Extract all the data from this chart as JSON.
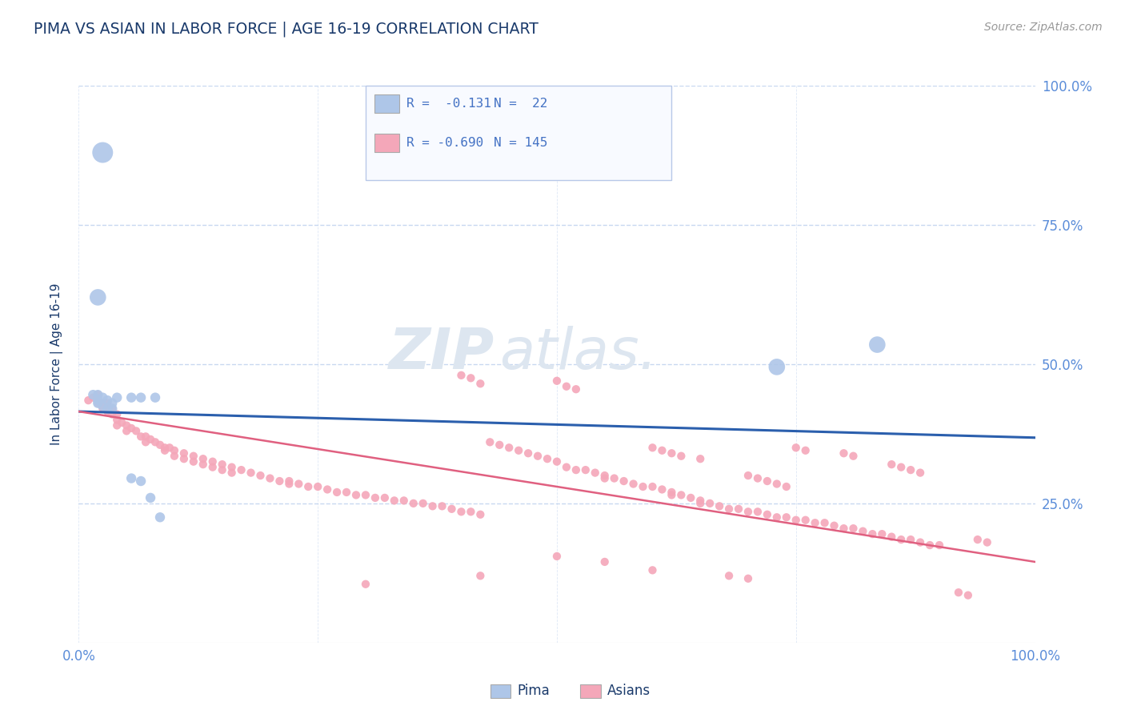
{
  "title": "PIMA VS ASIAN IN LABOR FORCE | AGE 16-19 CORRELATION CHART",
  "source": "Source: ZipAtlas.com",
  "ylabel": "In Labor Force | Age 16-19",
  "xlim": [
    0,
    1.0
  ],
  "ylim": [
    0,
    1.0
  ],
  "xticks": [
    0.0,
    0.25,
    0.5,
    0.75,
    1.0
  ],
  "yticks": [
    0.0,
    0.25,
    0.5,
    0.75,
    1.0
  ],
  "right_ytick_labels": [
    "",
    "25.0%",
    "50.0%",
    "75.0%",
    "100.0%"
  ],
  "bottom_xtick_labels": [
    "0.0%",
    "",
    "",
    "",
    "100.0%"
  ],
  "watermark_line1": "ZIP",
  "watermark_line2": "atlas.",
  "blue_line_x": [
    0.0,
    1.0
  ],
  "blue_line_y": [
    0.415,
    0.368
  ],
  "pink_line_x": [
    0.0,
    1.0
  ],
  "pink_line_y": [
    0.415,
    0.145
  ],
  "pima_points": [
    [
      0.025,
      0.88
    ],
    [
      0.02,
      0.62
    ],
    [
      0.015,
      0.445
    ],
    [
      0.02,
      0.445
    ],
    [
      0.02,
      0.435
    ],
    [
      0.025,
      0.44
    ],
    [
      0.02,
      0.43
    ],
    [
      0.025,
      0.425
    ],
    [
      0.03,
      0.435
    ],
    [
      0.03,
      0.42
    ],
    [
      0.035,
      0.43
    ],
    [
      0.035,
      0.42
    ],
    [
      0.04,
      0.44
    ],
    [
      0.055,
      0.44
    ],
    [
      0.065,
      0.44
    ],
    [
      0.08,
      0.44
    ],
    [
      0.055,
      0.295
    ],
    [
      0.065,
      0.29
    ],
    [
      0.075,
      0.26
    ],
    [
      0.085,
      0.225
    ],
    [
      0.73,
      0.495
    ],
    [
      0.835,
      0.535
    ]
  ],
  "pima_sizes": [
    350,
    220,
    80,
    80,
    80,
    80,
    80,
    80,
    80,
    80,
    80,
    80,
    80,
    80,
    80,
    80,
    80,
    80,
    80,
    80,
    220,
    220
  ],
  "asian_points": [
    [
      0.01,
      0.435
    ],
    [
      0.015,
      0.44
    ],
    [
      0.02,
      0.445
    ],
    [
      0.02,
      0.43
    ],
    [
      0.025,
      0.43
    ],
    [
      0.025,
      0.42
    ],
    [
      0.03,
      0.43
    ],
    [
      0.03,
      0.415
    ],
    [
      0.035,
      0.42
    ],
    [
      0.035,
      0.41
    ],
    [
      0.04,
      0.41
    ],
    [
      0.04,
      0.4
    ],
    [
      0.04,
      0.39
    ],
    [
      0.045,
      0.395
    ],
    [
      0.05,
      0.39
    ],
    [
      0.05,
      0.38
    ],
    [
      0.055,
      0.385
    ],
    [
      0.06,
      0.38
    ],
    [
      0.065,
      0.37
    ],
    [
      0.07,
      0.37
    ],
    [
      0.07,
      0.36
    ],
    [
      0.075,
      0.365
    ],
    [
      0.08,
      0.36
    ],
    [
      0.085,
      0.355
    ],
    [
      0.09,
      0.35
    ],
    [
      0.09,
      0.345
    ],
    [
      0.095,
      0.35
    ],
    [
      0.1,
      0.345
    ],
    [
      0.1,
      0.335
    ],
    [
      0.11,
      0.34
    ],
    [
      0.11,
      0.33
    ],
    [
      0.12,
      0.335
    ],
    [
      0.12,
      0.325
    ],
    [
      0.13,
      0.33
    ],
    [
      0.13,
      0.32
    ],
    [
      0.14,
      0.325
    ],
    [
      0.14,
      0.315
    ],
    [
      0.15,
      0.32
    ],
    [
      0.15,
      0.31
    ],
    [
      0.16,
      0.315
    ],
    [
      0.16,
      0.305
    ],
    [
      0.17,
      0.31
    ],
    [
      0.18,
      0.305
    ],
    [
      0.19,
      0.3
    ],
    [
      0.2,
      0.295
    ],
    [
      0.21,
      0.29
    ],
    [
      0.22,
      0.29
    ],
    [
      0.22,
      0.285
    ],
    [
      0.23,
      0.285
    ],
    [
      0.24,
      0.28
    ],
    [
      0.25,
      0.28
    ],
    [
      0.26,
      0.275
    ],
    [
      0.27,
      0.27
    ],
    [
      0.28,
      0.27
    ],
    [
      0.29,
      0.265
    ],
    [
      0.3,
      0.265
    ],
    [
      0.31,
      0.26
    ],
    [
      0.32,
      0.26
    ],
    [
      0.33,
      0.255
    ],
    [
      0.34,
      0.255
    ],
    [
      0.35,
      0.25
    ],
    [
      0.36,
      0.25
    ],
    [
      0.37,
      0.245
    ],
    [
      0.38,
      0.245
    ],
    [
      0.39,
      0.24
    ],
    [
      0.4,
      0.235
    ],
    [
      0.41,
      0.235
    ],
    [
      0.42,
      0.23
    ],
    [
      0.43,
      0.36
    ],
    [
      0.44,
      0.355
    ],
    [
      0.45,
      0.35
    ],
    [
      0.46,
      0.345
    ],
    [
      0.47,
      0.34
    ],
    [
      0.48,
      0.335
    ],
    [
      0.49,
      0.33
    ],
    [
      0.5,
      0.325
    ],
    [
      0.5,
      0.47
    ],
    [
      0.51,
      0.46
    ],
    [
      0.52,
      0.455
    ],
    [
      0.51,
      0.315
    ],
    [
      0.52,
      0.31
    ],
    [
      0.53,
      0.31
    ],
    [
      0.54,
      0.305
    ],
    [
      0.55,
      0.3
    ],
    [
      0.55,
      0.295
    ],
    [
      0.56,
      0.295
    ],
    [
      0.57,
      0.29
    ],
    [
      0.58,
      0.285
    ],
    [
      0.59,
      0.28
    ],
    [
      0.6,
      0.28
    ],
    [
      0.61,
      0.275
    ],
    [
      0.62,
      0.27
    ],
    [
      0.62,
      0.265
    ],
    [
      0.63,
      0.265
    ],
    [
      0.64,
      0.26
    ],
    [
      0.65,
      0.255
    ],
    [
      0.65,
      0.25
    ],
    [
      0.66,
      0.25
    ],
    [
      0.67,
      0.245
    ],
    [
      0.68,
      0.24
    ],
    [
      0.69,
      0.24
    ],
    [
      0.7,
      0.235
    ],
    [
      0.71,
      0.235
    ],
    [
      0.72,
      0.23
    ],
    [
      0.73,
      0.225
    ],
    [
      0.74,
      0.225
    ],
    [
      0.75,
      0.22
    ],
    [
      0.76,
      0.22
    ],
    [
      0.77,
      0.215
    ],
    [
      0.78,
      0.215
    ],
    [
      0.79,
      0.21
    ],
    [
      0.8,
      0.205
    ],
    [
      0.81,
      0.205
    ],
    [
      0.82,
      0.2
    ],
    [
      0.83,
      0.195
    ],
    [
      0.84,
      0.195
    ],
    [
      0.85,
      0.19
    ],
    [
      0.86,
      0.185
    ],
    [
      0.87,
      0.185
    ],
    [
      0.88,
      0.18
    ],
    [
      0.89,
      0.175
    ],
    [
      0.9,
      0.175
    ],
    [
      0.6,
      0.35
    ],
    [
      0.61,
      0.345
    ],
    [
      0.62,
      0.34
    ],
    [
      0.63,
      0.335
    ],
    [
      0.65,
      0.33
    ],
    [
      0.7,
      0.3
    ],
    [
      0.71,
      0.295
    ],
    [
      0.72,
      0.29
    ],
    [
      0.73,
      0.285
    ],
    [
      0.74,
      0.28
    ],
    [
      0.75,
      0.35
    ],
    [
      0.76,
      0.345
    ],
    [
      0.8,
      0.34
    ],
    [
      0.81,
      0.335
    ],
    [
      0.55,
      0.145
    ],
    [
      0.6,
      0.13
    ],
    [
      0.68,
      0.12
    ],
    [
      0.3,
      0.105
    ],
    [
      0.42,
      0.12
    ],
    [
      0.5,
      0.155
    ],
    [
      0.7,
      0.115
    ],
    [
      0.92,
      0.09
    ],
    [
      0.93,
      0.085
    ],
    [
      0.94,
      0.185
    ],
    [
      0.95,
      0.18
    ],
    [
      0.85,
      0.32
    ],
    [
      0.86,
      0.315
    ],
    [
      0.87,
      0.31
    ],
    [
      0.88,
      0.305
    ],
    [
      0.4,
      0.48
    ],
    [
      0.41,
      0.475
    ],
    [
      0.42,
      0.465
    ]
  ],
  "asian_point_size": 55,
  "title_color": "#1a3a6b",
  "source_color": "#999999",
  "axis_label_color": "#1a3a6b",
  "tick_color": "#5b8dd9",
  "grid_color": "#c8d8f0",
  "blue_dot_color": "#aec6e8",
  "pink_dot_color": "#f4a7b9",
  "blue_line_color": "#2b5fad",
  "pink_line_color": "#e06080",
  "legend_box_facecolor": "#f8faff",
  "legend_box_edgecolor": "#b8c8e8",
  "background_color": "#ffffff",
  "watermark_color": "#dde6f0",
  "legend_text_color": "#1a3a6b",
  "legend_r_color": "#4472c4"
}
